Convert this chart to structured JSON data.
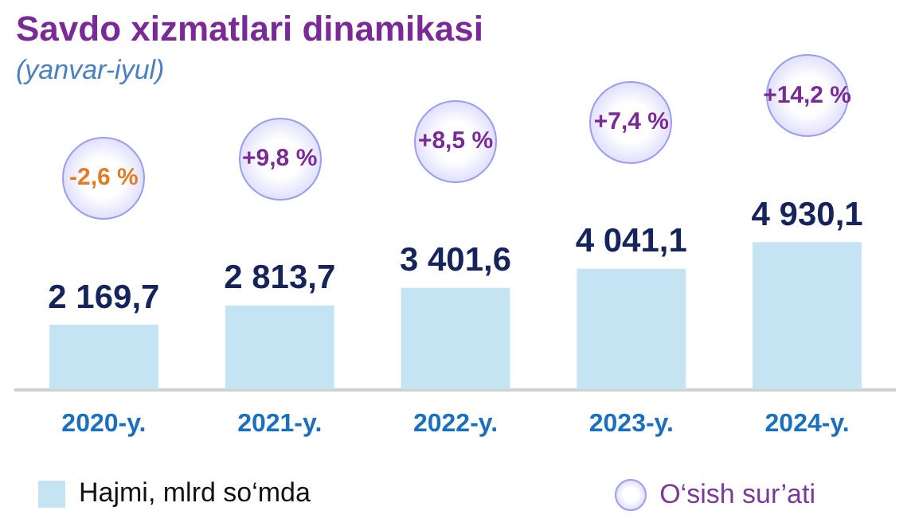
{
  "chart_data": {
    "type": "bar",
    "title": "Savdo xizmatlari dinamikasi",
    "subtitle": "(yanvar-iyul)",
    "categories": [
      "2020-y.",
      "2021-y.",
      "2022-y.",
      "2023-y.",
      "2024-y."
    ],
    "series": [
      {
        "name": "Hajmi, mlrd so‘mda",
        "color": "#c4e4f4",
        "values": [
          2169.7,
          2813.7,
          3401.6,
          4041.1,
          4930.1
        ],
        "value_labels": [
          "2 169,7",
          "2 813,7",
          "3 401,6",
          "4 041,1",
          "4 930,1"
        ]
      }
    ],
    "annotations": [
      "-2,6 %",
      "+9,8 %",
      "+8,5 %",
      "+7,4 %",
      "+14,2 %",
      "O‘sish sur’ati"
    ],
    "legend": "bottom",
    "grid": false
  }
}
